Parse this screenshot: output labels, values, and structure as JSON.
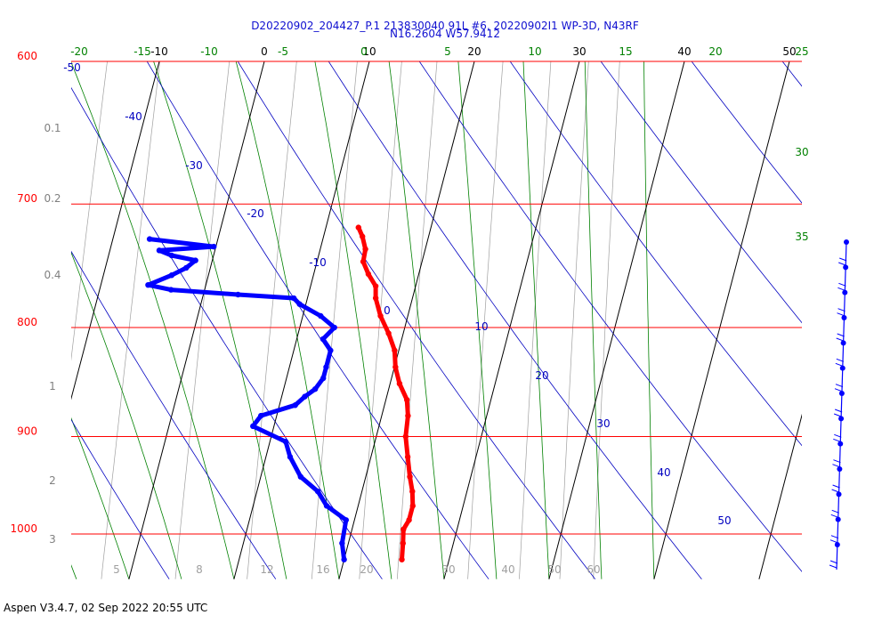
{
  "title_line1": "D20220902_204427_P.1 213830040 91L #6, 20220902I1 WP-3D, N43RF",
  "title_line2": "N16.2604 W57.9412",
  "footer": "Aspen V3.4.7, 02 Sep 2022  20:55 UTC",
  "colors": {
    "isobar": "#ff0000",
    "isotherm": "#000000",
    "dry_adiabat": "#0000c0",
    "moist_adiabat": "#008000",
    "mixing_ratio": "#a0a0a0",
    "temperature": "#ff0000",
    "dewpoint": "#0000ff",
    "wind": "#0000ff"
  },
  "chart_data": {
    "type": "skew-t log-p",
    "y_axis": {
      "quantity": "pressure",
      "unit": "hPa",
      "range": [
        600,
        1050
      ],
      "ticks": [
        600,
        700,
        800,
        900,
        1000
      ]
    },
    "x_axis": {
      "quantity": "temperature",
      "unit": "°C",
      "range": [
        -20,
        50
      ],
      "ticks": [
        -10,
        0,
        10,
        20,
        30,
        40,
        50
      ]
    },
    "mixing_ratio_lines": {
      "unit": "g/kg",
      "values": [
        0.1,
        0.2,
        0.4,
        1,
        2,
        3,
        5,
        8,
        12,
        16,
        20,
        30,
        40,
        50,
        60
      ],
      "left_labels": [
        "0.1",
        "0.2",
        "0.4",
        "1",
        "2",
        "3"
      ],
      "bottom_labels": [
        "5",
        "8",
        "12",
        "16",
        "20",
        "30",
        "40",
        "50",
        "60"
      ]
    },
    "dry_adiabats": {
      "unit": "°C",
      "labels": [
        "-50",
        "-40",
        "-30",
        "-20",
        "-10",
        "0",
        "10",
        "20",
        "30",
        "40",
        "50"
      ]
    },
    "moist_adiabats": {
      "unit": "°C",
      "top_labels": [
        "-20",
        "-15",
        "-10",
        "-5",
        "0",
        "5",
        "10",
        "15",
        "20"
      ],
      "right_labels": [
        "25",
        "30",
        "35"
      ]
    },
    "series": [
      {
        "name": "temperature",
        "points": [
          {
            "p": 1028,
            "t": 25.5
          },
          {
            "p": 1010,
            "t": 25.2
          },
          {
            "p": 995,
            "t": 24.9
          },
          {
            "p": 985,
            "t": 25.2
          },
          {
            "p": 970,
            "t": 25.2
          },
          {
            "p": 955,
            "t": 24.8
          },
          {
            "p": 940,
            "t": 24.2
          },
          {
            "p": 920,
            "t": 23.5
          },
          {
            "p": 900,
            "t": 22.8
          },
          {
            "p": 880,
            "t": 22.5
          },
          {
            "p": 865,
            "t": 22.0
          },
          {
            "p": 850,
            "t": 20.9
          },
          {
            "p": 835,
            "t": 20.1
          },
          {
            "p": 820,
            "t": 19.6
          },
          {
            "p": 805,
            "t": 18.6
          },
          {
            "p": 790,
            "t": 17.4
          },
          {
            "p": 775,
            "t": 16.5
          },
          {
            "p": 765,
            "t": 16.2
          },
          {
            "p": 755,
            "t": 15.2
          },
          {
            "p": 745,
            "t": 14.4
          },
          {
            "p": 735,
            "t": 14.3
          },
          {
            "p": 725,
            "t": 13.7
          },
          {
            "p": 718,
            "t": 13.1
          }
        ]
      },
      {
        "name": "dewpoint",
        "points": [
          {
            "p": 1028,
            "t": 20.0
          },
          {
            "p": 1010,
            "t": 19.4
          },
          {
            "p": 985,
            "t": 19.2
          },
          {
            "p": 970,
            "t": 17.0
          },
          {
            "p": 955,
            "t": 15.8
          },
          {
            "p": 940,
            "t": 13.8
          },
          {
            "p": 920,
            "t": 12.3
          },
          {
            "p": 905,
            "t": 11.5
          },
          {
            "p": 890,
            "t": 8.0
          },
          {
            "p": 880,
            "t": 8.5
          },
          {
            "p": 870,
            "t": 11.5
          },
          {
            "p": 862,
            "t": 12.2
          },
          {
            "p": 855,
            "t": 13.0
          },
          {
            "p": 845,
            "t": 13.5
          },
          {
            "p": 835,
            "t": 13.5
          },
          {
            "p": 820,
            "t": 13.5
          },
          {
            "p": 810,
            "t": 12.5
          },
          {
            "p": 800,
            "t": 13.3
          },
          {
            "p": 790,
            "t": 11.7
          },
          {
            "p": 780,
            "t": 9.4
          },
          {
            "p": 775,
            "t": 8.7
          },
          {
            "p": 772,
            "t": 3.3
          },
          {
            "p": 768,
            "t": -3.2
          },
          {
            "p": 764,
            "t": -5.5
          },
          {
            "p": 756,
            "t": -3.5
          },
          {
            "p": 750,
            "t": -2.3
          },
          {
            "p": 744,
            "t": -1.6
          },
          {
            "p": 740,
            "t": -4.0
          },
          {
            "p": 736,
            "t": -5.3
          },
          {
            "p": 733,
            "t": -0.2
          },
          {
            "p": 727,
            "t": -6.5
          }
        ]
      }
    ],
    "wind_profile": {
      "levels": 13
    }
  }
}
